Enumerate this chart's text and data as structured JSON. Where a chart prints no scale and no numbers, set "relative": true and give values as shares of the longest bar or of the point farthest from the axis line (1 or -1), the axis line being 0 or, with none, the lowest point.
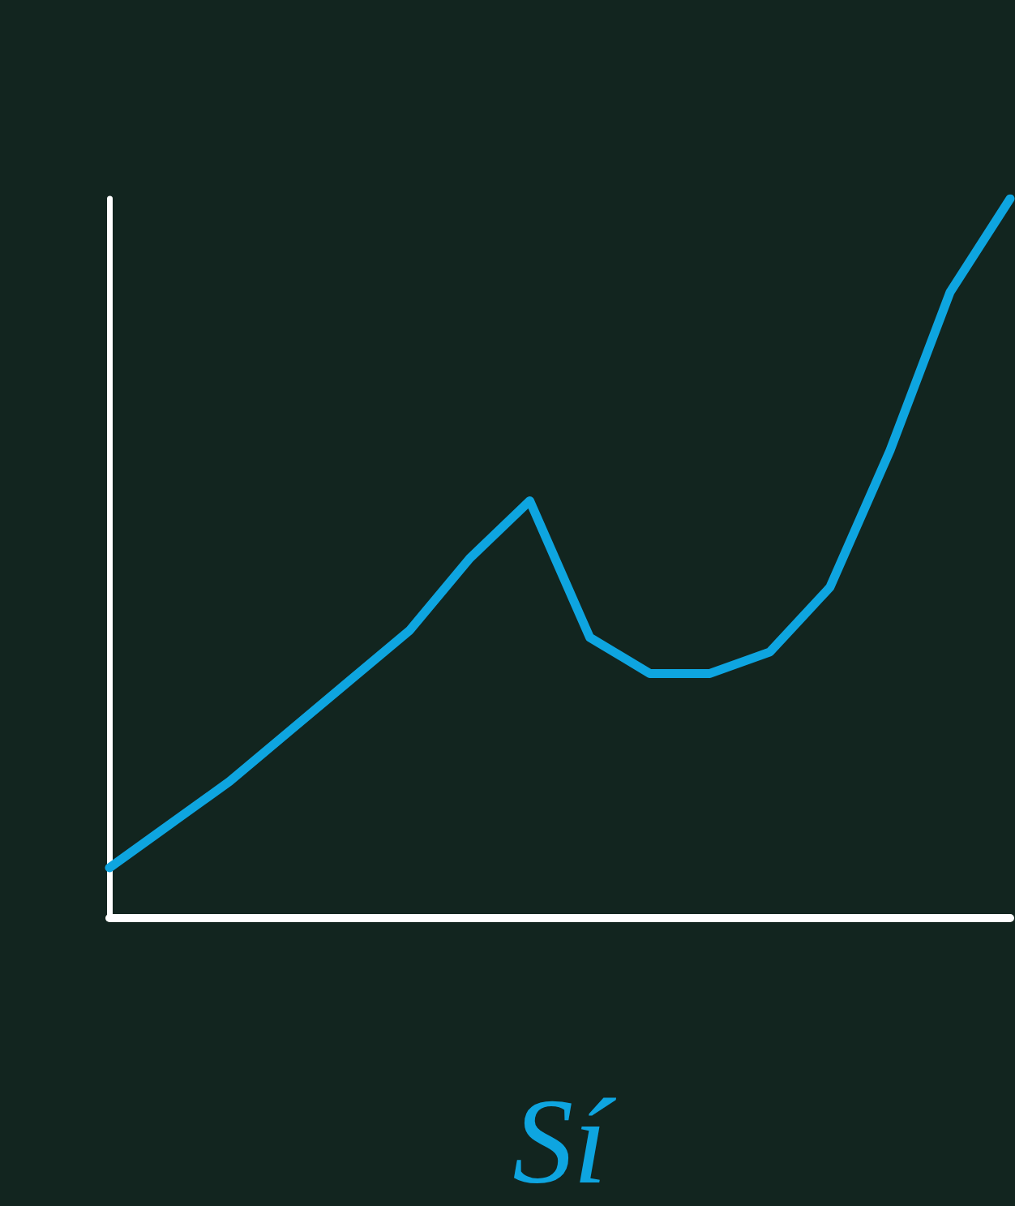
{
  "chart_data": {
    "type": "line",
    "relative": true,
    "xlabel": "Sí",
    "categories": [
      null,
      null,
      null,
      null,
      null,
      null,
      null,
      null,
      null,
      null,
      null,
      null,
      null,
      null,
      null,
      null
    ],
    "series": [
      {
        "color": "#0ea5e0",
        "values": [
          0.07,
          0.13,
          0.19,
          0.26,
          0.33,
          0.4,
          0.5,
          0.58,
          0.39,
          0.34,
          0.34,
          0.37,
          0.46,
          0.65,
          0.87,
          1.0
        ]
      }
    ],
    "grid": false,
    "line_style": "solid"
  }
}
